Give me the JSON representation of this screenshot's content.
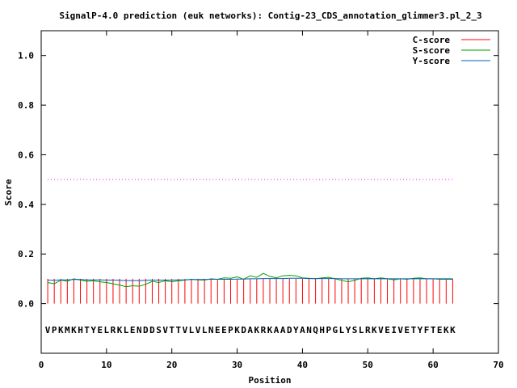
{
  "chart_data": {
    "type": "line",
    "title": "SignalP-4.0 prediction (euk networks): Contig-23_CDS_annotation_glimmer3.pl_2_3",
    "xlabel": "Position",
    "ylabel": "Score",
    "xlim": [
      0,
      70
    ],
    "ylim": [
      -0.2,
      1.1
    ],
    "x_ticks": [
      0,
      10,
      20,
      30,
      40,
      50,
      60,
      70
    ],
    "y_ticks": [
      0.0,
      0.2,
      0.4,
      0.6,
      0.8,
      1.0
    ],
    "x_tick_labels": [
      "0",
      "10",
      "20",
      "30",
      "40",
      "50",
      "60",
      "70"
    ],
    "y_tick_labels": [
      "0.0",
      "0.2",
      "0.4",
      "0.6",
      "0.8",
      "1.0"
    ],
    "grid": false,
    "legend_position": "top-right",
    "threshold": 0.5,
    "sequence": "VPKMKHTYELRKLENDDSVTTVLVLNEEPKDAKRKAADYANQHPGLYSLRKVEIVETYFTEKK",
    "positions": [
      1,
      2,
      3,
      4,
      5,
      6,
      7,
      8,
      9,
      10,
      11,
      12,
      13,
      14,
      15,
      16,
      17,
      18,
      19,
      20,
      21,
      22,
      23,
      24,
      25,
      26,
      27,
      28,
      29,
      30,
      31,
      32,
      33,
      34,
      35,
      36,
      37,
      38,
      39,
      40,
      41,
      42,
      43,
      44,
      45,
      46,
      47,
      48,
      49,
      50,
      51,
      52,
      53,
      54,
      55,
      56,
      57,
      58,
      59,
      60,
      61,
      62,
      63
    ],
    "series": [
      {
        "name": "C-score",
        "color": "#ff0000",
        "style": "impulse",
        "values": [
          0.1,
          0.1,
          0.1,
          0.1,
          0.1,
          0.1,
          0.1,
          0.1,
          0.1,
          0.1,
          0.1,
          0.1,
          0.1,
          0.1,
          0.1,
          0.1,
          0.1,
          0.1,
          0.1,
          0.1,
          0.1,
          0.1,
          0.1,
          0.1,
          0.1,
          0.1,
          0.1,
          0.1,
          0.1,
          0.1,
          0.1,
          0.1,
          0.1,
          0.1,
          0.1,
          0.1,
          0.1,
          0.1,
          0.1,
          0.1,
          0.1,
          0.1,
          0.1,
          0.1,
          0.1,
          0.1,
          0.1,
          0.1,
          0.1,
          0.1,
          0.1,
          0.1,
          0.1,
          0.1,
          0.1,
          0.1,
          0.1,
          0.1,
          0.1,
          0.1,
          0.1,
          0.1,
          0.1
        ]
      },
      {
        "name": "S-score",
        "color": "#00a000",
        "style": "line",
        "values": [
          0.085,
          0.08,
          0.095,
          0.09,
          0.1,
          0.095,
          0.09,
          0.092,
          0.088,
          0.085,
          0.08,
          0.075,
          0.068,
          0.072,
          0.07,
          0.078,
          0.09,
          0.085,
          0.092,
          0.088,
          0.092,
          0.095,
          0.098,
          0.096,
          0.095,
          0.1,
          0.098,
          0.104,
          0.102,
          0.108,
          0.098,
          0.112,
          0.106,
          0.122,
          0.11,
          0.104,
          0.112,
          0.114,
          0.112,
          0.104,
          0.102,
          0.1,
          0.104,
          0.106,
          0.1,
          0.094,
          0.088,
          0.094,
          0.102,
          0.104,
          0.1,
          0.104,
          0.1,
          0.096,
          0.1,
          0.098,
          0.102,
          0.104,
          0.1,
          0.1,
          0.098,
          0.098,
          0.098
        ]
      },
      {
        "name": "Y-score",
        "color": "#0060c0",
        "style": "line",
        "values": [
          0.095,
          0.094,
          0.096,
          0.096,
          0.097,
          0.097,
          0.096,
          0.096,
          0.096,
          0.095,
          0.095,
          0.094,
          0.093,
          0.093,
          0.093,
          0.094,
          0.095,
          0.095,
          0.095,
          0.095,
          0.096,
          0.096,
          0.097,
          0.097,
          0.097,
          0.098,
          0.098,
          0.098,
          0.098,
          0.099,
          0.099,
          0.1,
          0.1,
          0.101,
          0.101,
          0.101,
          0.101,
          0.102,
          0.102,
          0.102,
          0.101,
          0.101,
          0.101,
          0.101,
          0.101,
          0.1,
          0.1,
          0.1,
          0.1,
          0.1,
          0.1,
          0.1,
          0.1,
          0.1,
          0.1,
          0.1,
          0.1,
          0.1,
          0.1,
          0.1,
          0.1,
          0.1,
          0.1
        ]
      }
    ]
  }
}
